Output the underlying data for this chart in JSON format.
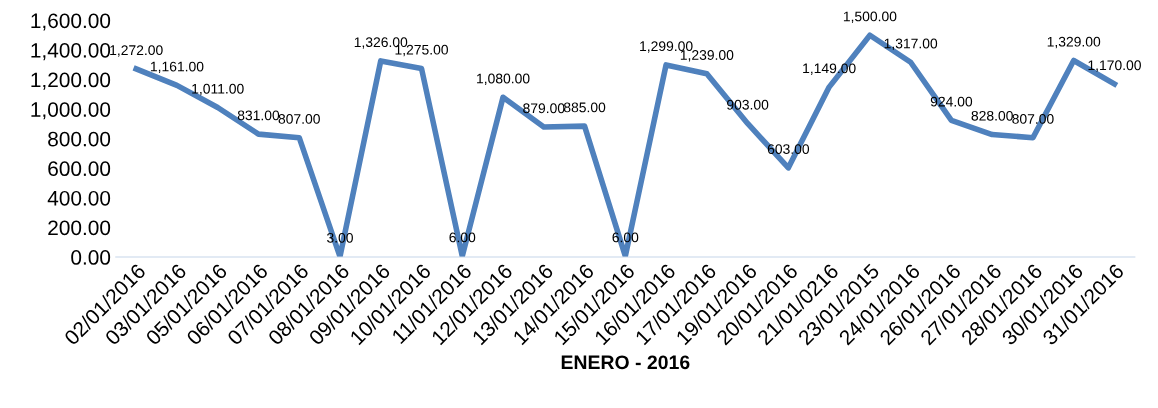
{
  "chart_data": {
    "type": "line",
    "xlabel": "ENERO - 2016",
    "categories": [
      "02/01/2016",
      "03/01/2016",
      "05/01/2016",
      "06/01/2016",
      "07/01/2016",
      "08/01/2016",
      "09/01/2016",
      "10/01/2016",
      "11/01/2016",
      "12/01/2016",
      "13/01/2016",
      "14/01/2016",
      "15/01/2016",
      "16/01/2016",
      "17/01/2016",
      "19/01/2016",
      "20/01/2016",
      "21/01/0216",
      "23/01/2015",
      "24/01/2016",
      "26/01/2016",
      "27/01/2016",
      "28/01/2016",
      "30/01/2016",
      "31/01/2016"
    ],
    "series": [
      {
        "color": "#4f81bd",
        "values": [
          1272,
          1161,
          1011,
          831,
          807,
          3,
          1326,
          1275,
          6,
          1080,
          879,
          885,
          6,
          1299,
          1239,
          903,
          603,
          1149,
          1500,
          1317,
          924,
          828,
          807,
          1329,
          1170
        ],
        "value_labels": [
          "1,272.00",
          "1,161.00",
          "1,011.00",
          "831.00",
          "807.00",
          "3.00",
          "1,326.00",
          "1,275.00",
          "6.00",
          "1,080.00",
          "879.00",
          "885.00",
          "6.00",
          "1,299.00",
          "1,239.00",
          "903.00",
          "603.00",
          "1,149.00",
          "1,500.00",
          "1,317.00",
          "924.00",
          "828.00",
          "807.00",
          "1,329.00",
          "1,170.00"
        ]
      }
    ],
    "ylim": [
      0,
      1600
    ],
    "yticks": [
      {
        "value": 0,
        "label": "0.00"
      },
      {
        "value": 200,
        "label": "200.00"
      },
      {
        "value": 400,
        "label": "400.00"
      },
      {
        "value": 600,
        "label": "600.00"
      },
      {
        "value": 800,
        "label": "800.00"
      },
      {
        "value": 1000,
        "label": "1,000.00"
      },
      {
        "value": 1200,
        "label": "1,200.00"
      },
      {
        "value": 1400,
        "label": "1,400.00"
      },
      {
        "value": 1600,
        "label": "1,600.00"
      }
    ],
    "grid": false,
    "legend": false,
    "marker": "none",
    "line_style": "solid"
  }
}
